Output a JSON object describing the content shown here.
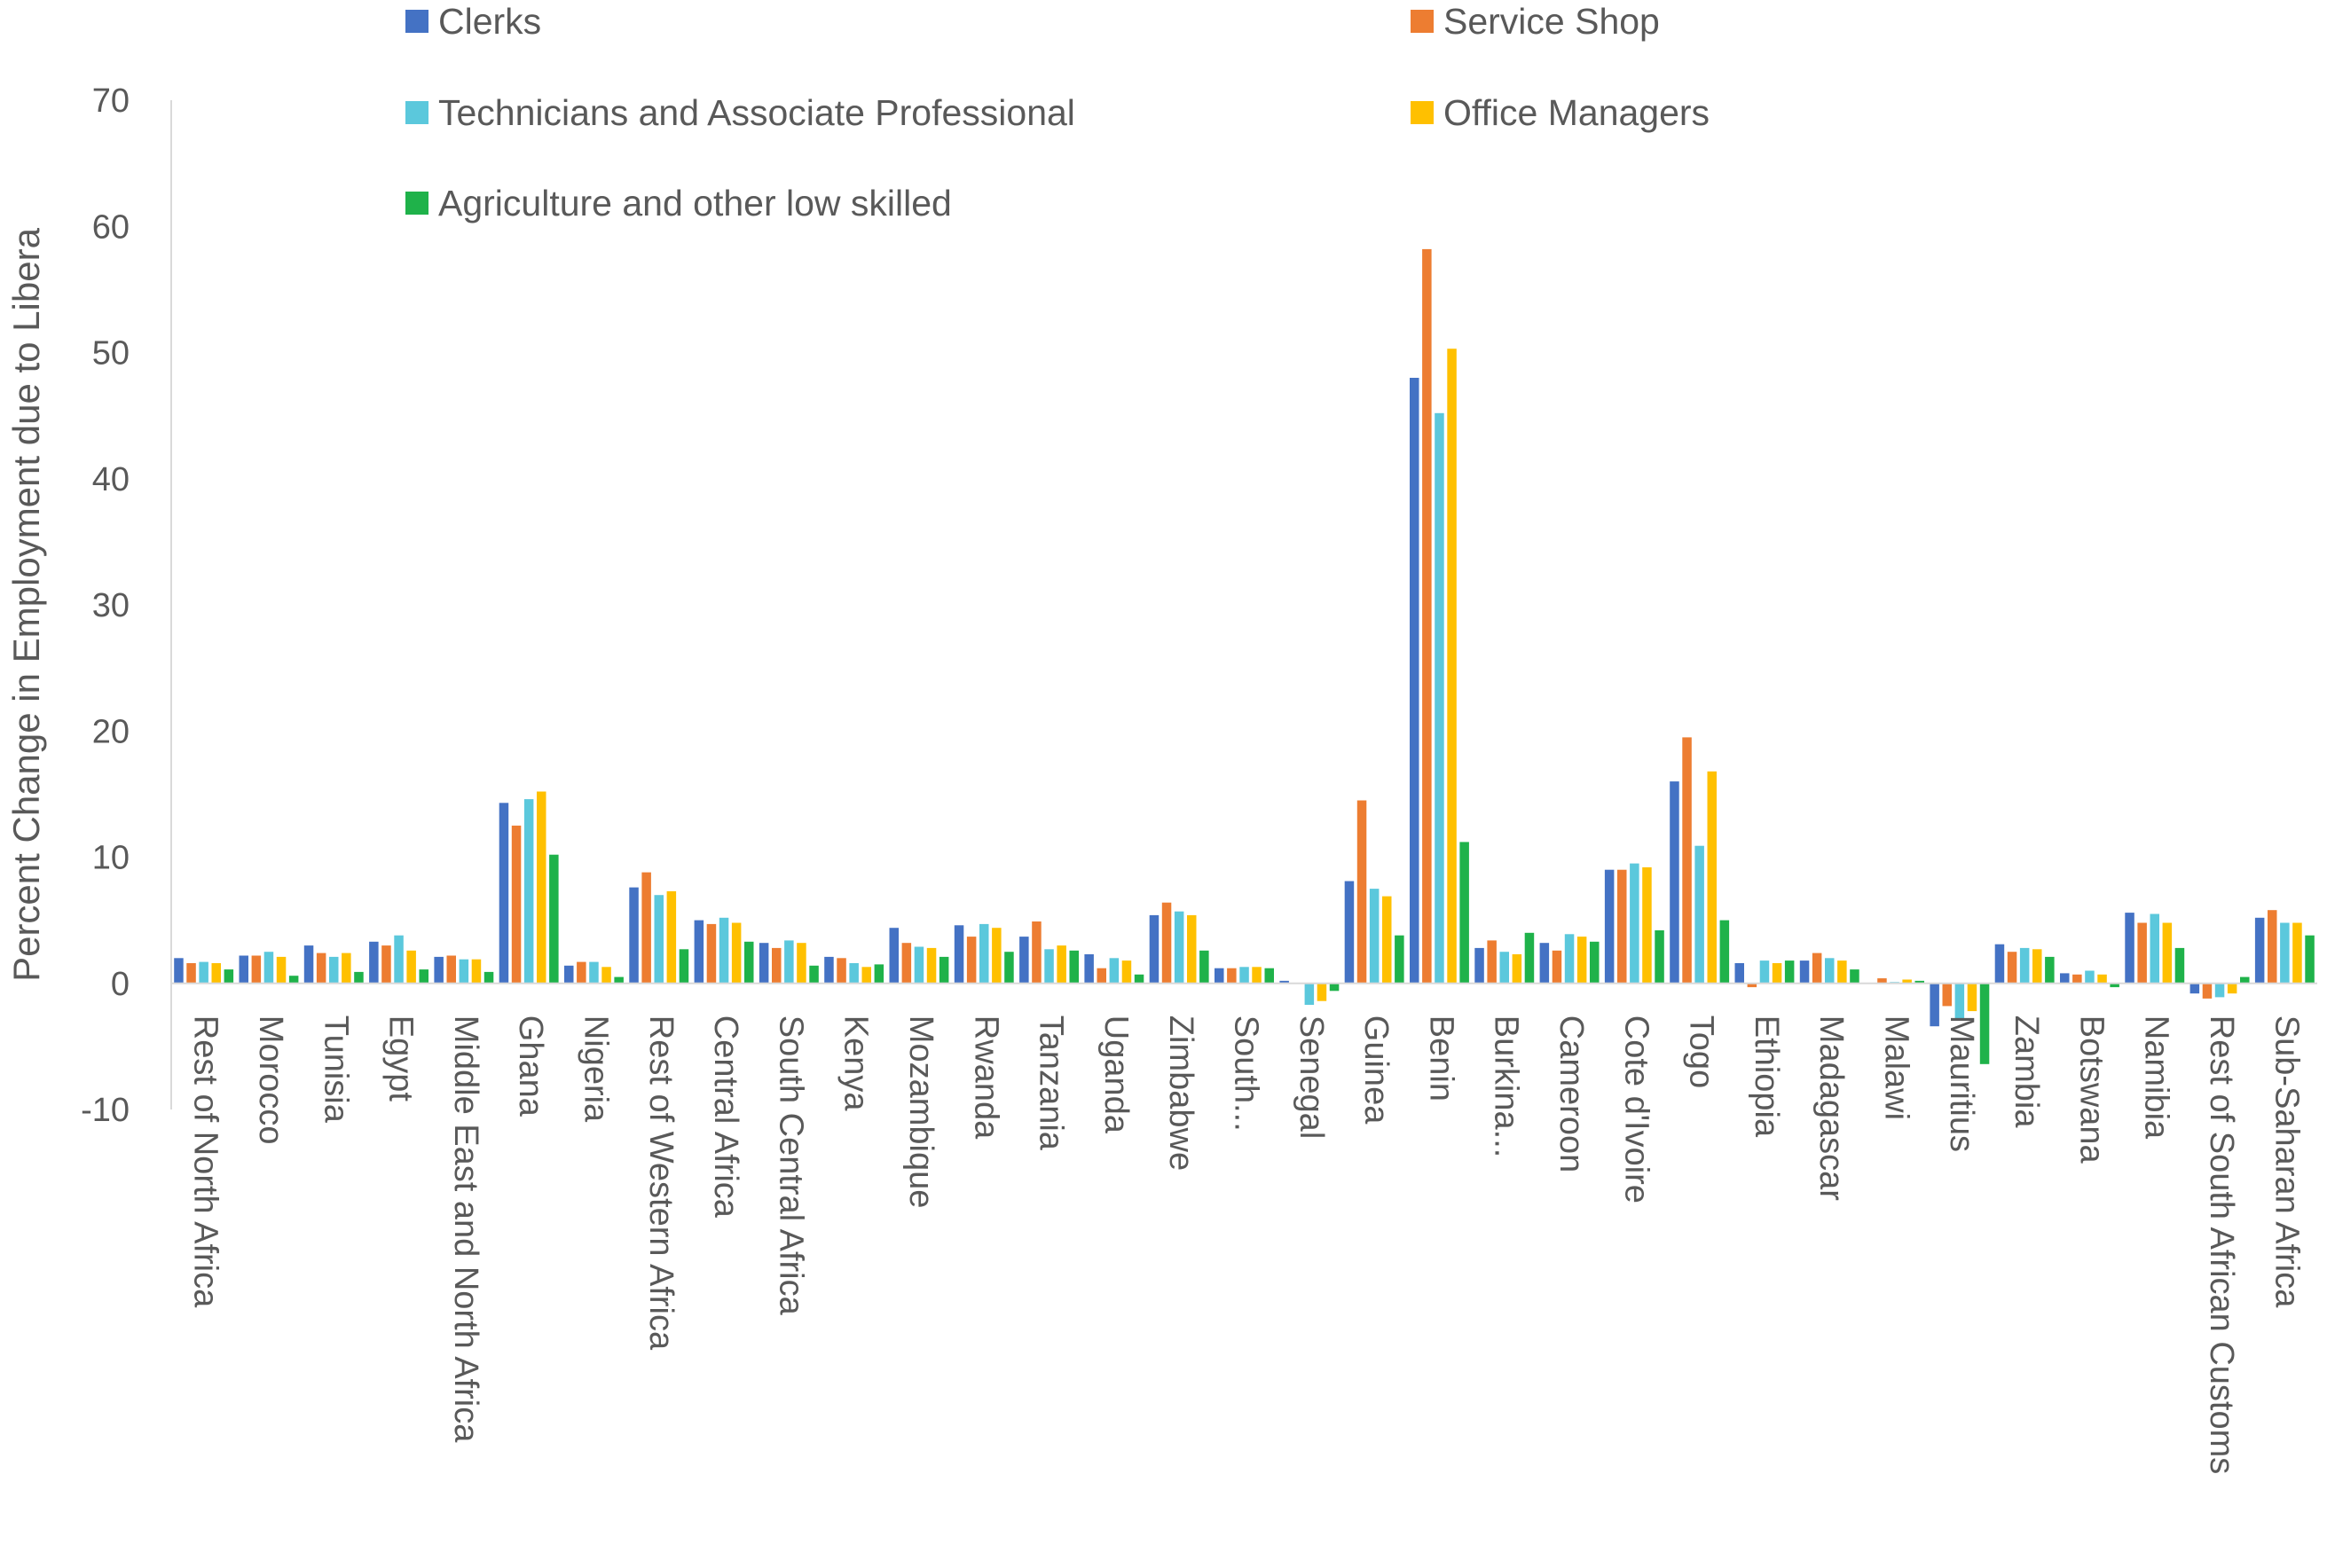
{
  "chart_data": {
    "type": "bar",
    "title": "",
    "xlabel": "",
    "ylabel": "Percent Change in Employment due to Libera",
    "ylim": [
      -10,
      70
    ],
    "yticks": [
      -10,
      0,
      10,
      20,
      30,
      40,
      50,
      60,
      70
    ],
    "grid": false,
    "legend_position": "top",
    "categories": [
      "Rest of North Africa",
      "Morocco",
      "Tunisia",
      "Egypt",
      "Middle East and North Africa",
      "Ghana",
      "Nigeria",
      "Rest of Western Africa",
      "Central Africa",
      "South Central Africa",
      "Kenya",
      "Mozambique",
      "Rwanda",
      "Tanzania",
      "Uganda",
      "Zimbabwe",
      "South...",
      "Senegal",
      "Guinea",
      "Benin",
      "Burkina...",
      "Cameroon",
      "Cote d'Ivoire",
      "Togo",
      "Ethiopia",
      "Madagascar",
      "Malawi",
      "Mauritius",
      "Zambia",
      "Botswana",
      "Namibia",
      "Rest of South African Customs",
      "Sub-Saharan Africa"
    ],
    "series": [
      {
        "name": "Clerks",
        "color": "#4472C4",
        "values": [
          2.0,
          2.2,
          3.0,
          3.3,
          2.1,
          14.3,
          1.4,
          7.6,
          5.0,
          3.2,
          2.1,
          4.4,
          4.6,
          3.7,
          2.3,
          5.4,
          1.2,
          0.2,
          8.1,
          48.0,
          2.8,
          3.2,
          9.0,
          16.0,
          1.6,
          1.8,
          0.0,
          -3.4,
          3.1,
          0.8,
          5.6,
          -0.8,
          5.2
        ]
      },
      {
        "name": "Service Shop",
        "color": "#ED7D31",
        "values": [
          1.6,
          2.2,
          2.4,
          3.0,
          2.2,
          12.5,
          1.7,
          8.8,
          4.7,
          2.8,
          2.0,
          3.2,
          3.7,
          4.9,
          1.2,
          6.4,
          1.2,
          0.0,
          14.5,
          58.2,
          3.4,
          2.6,
          9.0,
          19.5,
          -0.3,
          2.4,
          0.4,
          -1.8,
          2.5,
          0.7,
          4.8,
          -1.2,
          5.8
        ]
      },
      {
        "name": "Technicians and Associate Professional",
        "color": "#5BC8DC",
        "values": [
          1.7,
          2.5,
          2.1,
          3.8,
          1.9,
          14.6,
          1.7,
          7.0,
          5.2,
          3.4,
          1.6,
          2.9,
          4.7,
          2.7,
          2.0,
          5.7,
          1.3,
          -1.7,
          7.5,
          45.2,
          2.5,
          3.9,
          9.5,
          10.9,
          1.8,
          2.0,
          0.1,
          -2.8,
          2.8,
          1.0,
          5.5,
          -1.1,
          4.8
        ]
      },
      {
        "name": "Office Managers",
        "color": "#FFC000",
        "values": [
          1.6,
          2.1,
          2.4,
          2.6,
          1.9,
          15.2,
          1.3,
          7.3,
          4.8,
          3.2,
          1.3,
          2.8,
          4.4,
          3.0,
          1.8,
          5.4,
          1.3,
          -1.4,
          6.9,
          50.3,
          2.3,
          3.7,
          9.2,
          16.8,
          1.6,
          1.8,
          0.3,
          -2.2,
          2.7,
          0.7,
          4.8,
          -0.8,
          4.8
        ]
      },
      {
        "name": "Agriculture and other low skilled",
        "color": "#1FB24A",
        "values": [
          1.1,
          0.6,
          0.9,
          1.1,
          0.9,
          10.2,
          0.5,
          2.7,
          3.3,
          1.4,
          1.5,
          2.1,
          2.5,
          2.6,
          0.7,
          2.6,
          1.2,
          -0.6,
          3.8,
          11.2,
          4.0,
          3.3,
          4.2,
          5.0,
          1.8,
          1.1,
          0.2,
          -6.4,
          2.1,
          -0.3,
          2.8,
          0.5,
          3.8
        ]
      }
    ]
  }
}
